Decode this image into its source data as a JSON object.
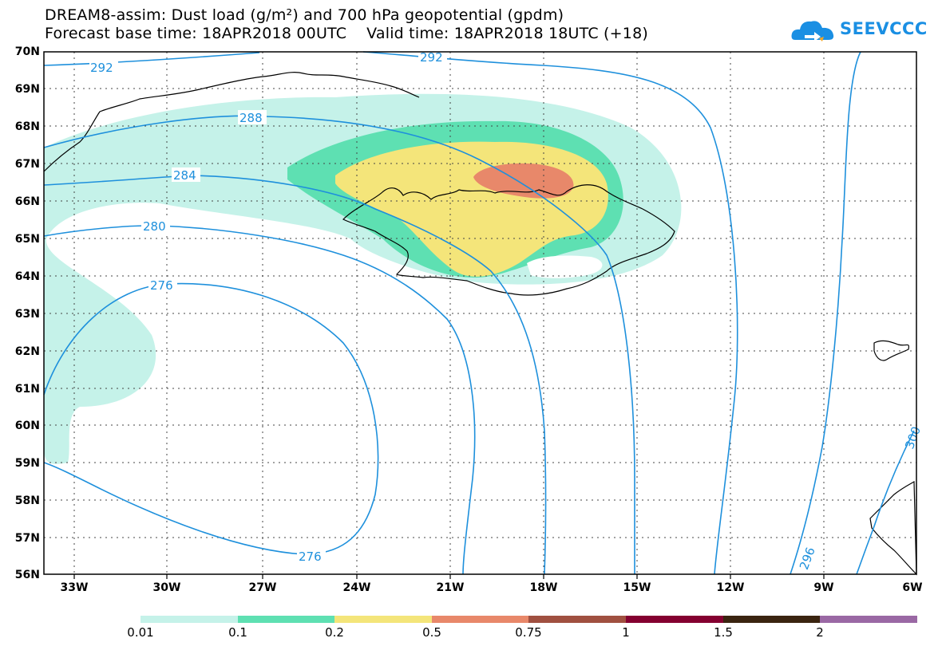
{
  "title": {
    "line1": "DREAM8-assim: Dust load (g/m²) and 700 hPa geopotential (gpdm)",
    "line2": "Forecast base time: 18APR2018 00UTC    Valid time: 18APR2018 18UTC (+18)"
  },
  "logo": {
    "text": "SEEVCCC",
    "icon": "cloud-icon",
    "color": "#1a8fe3"
  },
  "map": {
    "lat_labels": [
      "70N",
      "69N",
      "68N",
      "67N",
      "66N",
      "65N",
      "64N",
      "63N",
      "62N",
      "61N",
      "60N",
      "59N",
      "58N",
      "57N",
      "56N"
    ],
    "lon_labels": [
      "33W",
      "30W",
      "27W",
      "24W",
      "21W",
      "18W",
      "15W",
      "12W",
      "9W",
      "6W"
    ],
    "contour_labels": [
      "292",
      "292",
      "288",
      "284",
      "280",
      "276",
      "276",
      "296",
      "300"
    ],
    "contour_color": "#1e90dc"
  },
  "colorbar": {
    "labels": [
      "0.01",
      "0.1",
      "0.2",
      "0.5",
      "0.75",
      "1",
      "1.5",
      "2"
    ],
    "colors": [
      "#c5f2e9",
      "#5ee0b2",
      "#f4e57a",
      "#e8886a",
      "#a05040",
      "#840030",
      "#3a2410",
      "#9a68a4"
    ]
  }
}
